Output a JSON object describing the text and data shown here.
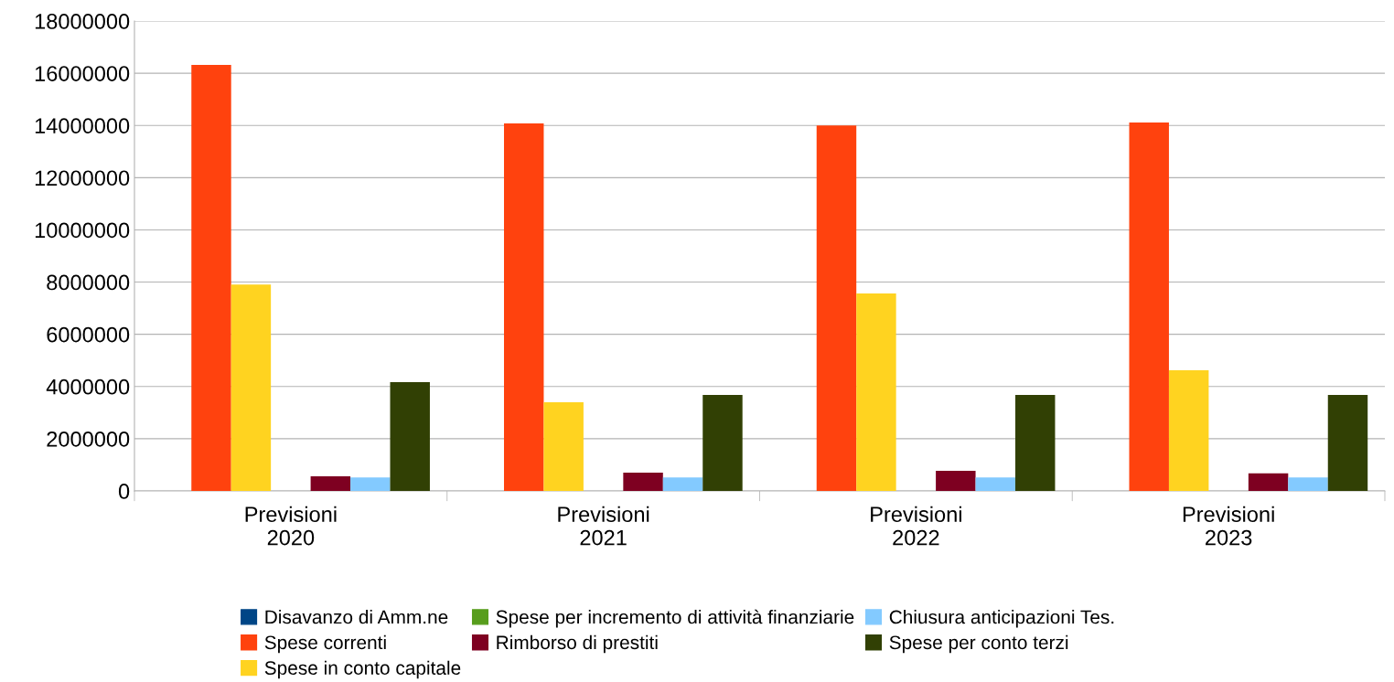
{
  "chart_data": {
    "type": "bar",
    "categories": [
      "Previsioni\n2020",
      "Previsioni\n2021",
      "Previsioni\n2022",
      "Previsioni\n2023"
    ],
    "series": [
      {
        "name": "Disavanzo di Amm.ne",
        "color": "#004586",
        "values": [
          0,
          0,
          0,
          0
        ]
      },
      {
        "name": "Spese correnti",
        "color": "#ff420e",
        "values": [
          16320000,
          14080000,
          14000000,
          14110000
        ]
      },
      {
        "name": "Spese in conto capitale",
        "color": "#ffd320",
        "values": [
          7910000,
          3400000,
          7560000,
          4620000
        ]
      },
      {
        "name": "Spese per incremento di attività finanziarie",
        "color": "#579d1c",
        "values": [
          0,
          0,
          0,
          0
        ]
      },
      {
        "name": "Rimborso di prestiti",
        "color": "#7e0021",
        "values": [
          560000,
          700000,
          770000,
          670000
        ]
      },
      {
        "name": "Chiusura anticipazioni Tes.",
        "color": "#83caff",
        "values": [
          520000,
          520000,
          520000,
          520000
        ]
      },
      {
        "name": "Spese per conto terzi",
        "color": "#314004",
        "values": [
          4170000,
          3680000,
          3680000,
          3680000
        ]
      }
    ],
    "ylim": [
      0,
      18000000
    ],
    "yticks": [
      0,
      2000000,
      4000000,
      6000000,
      8000000,
      10000000,
      12000000,
      14000000,
      16000000,
      18000000
    ],
    "grid": "y",
    "legend": "bottom"
  }
}
